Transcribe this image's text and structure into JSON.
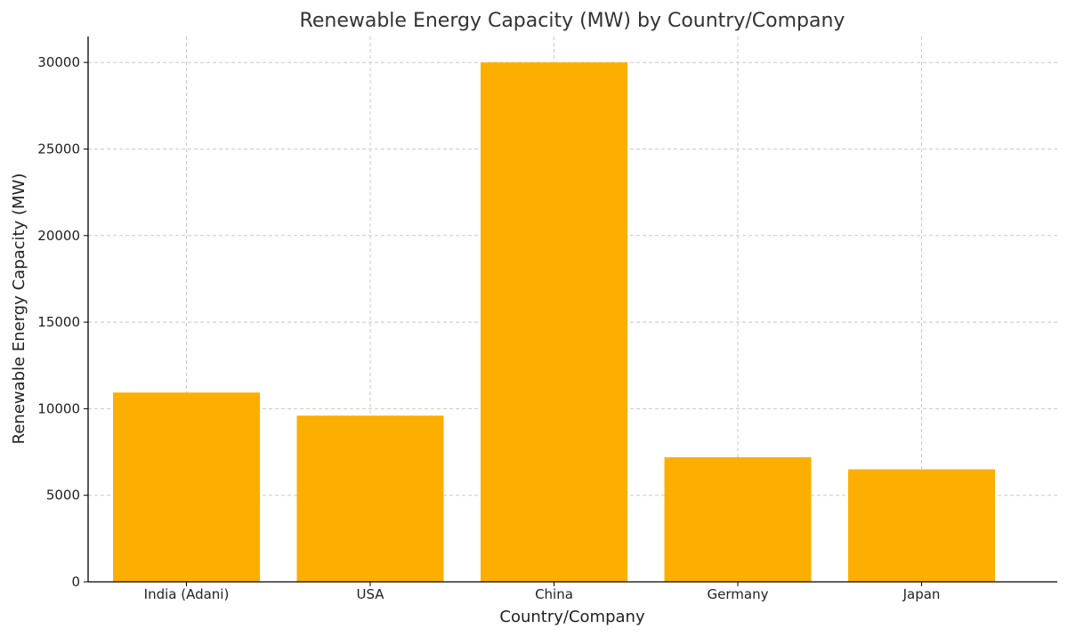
{
  "chart_data": {
    "type": "bar",
    "title": "Renewable Energy Capacity (MW) by Country/Company",
    "xlabel": "Country/Company",
    "ylabel": "Renewable Energy Capacity (MW)",
    "categories": [
      "India (Adani)",
      "USA",
      "China",
      "Germany",
      "Japan"
    ],
    "values": [
      10934,
      9600,
      30000,
      7200,
      6500
    ],
    "ylim": [
      0,
      31500
    ],
    "yticks": [
      0,
      5000,
      10000,
      15000,
      20000,
      25000,
      30000
    ],
    "ytick_labels": [
      "0",
      "5000",
      "10000",
      "15000",
      "20000",
      "25000",
      "30000"
    ],
    "grid": true,
    "bar_color": "#FCAF00"
  }
}
